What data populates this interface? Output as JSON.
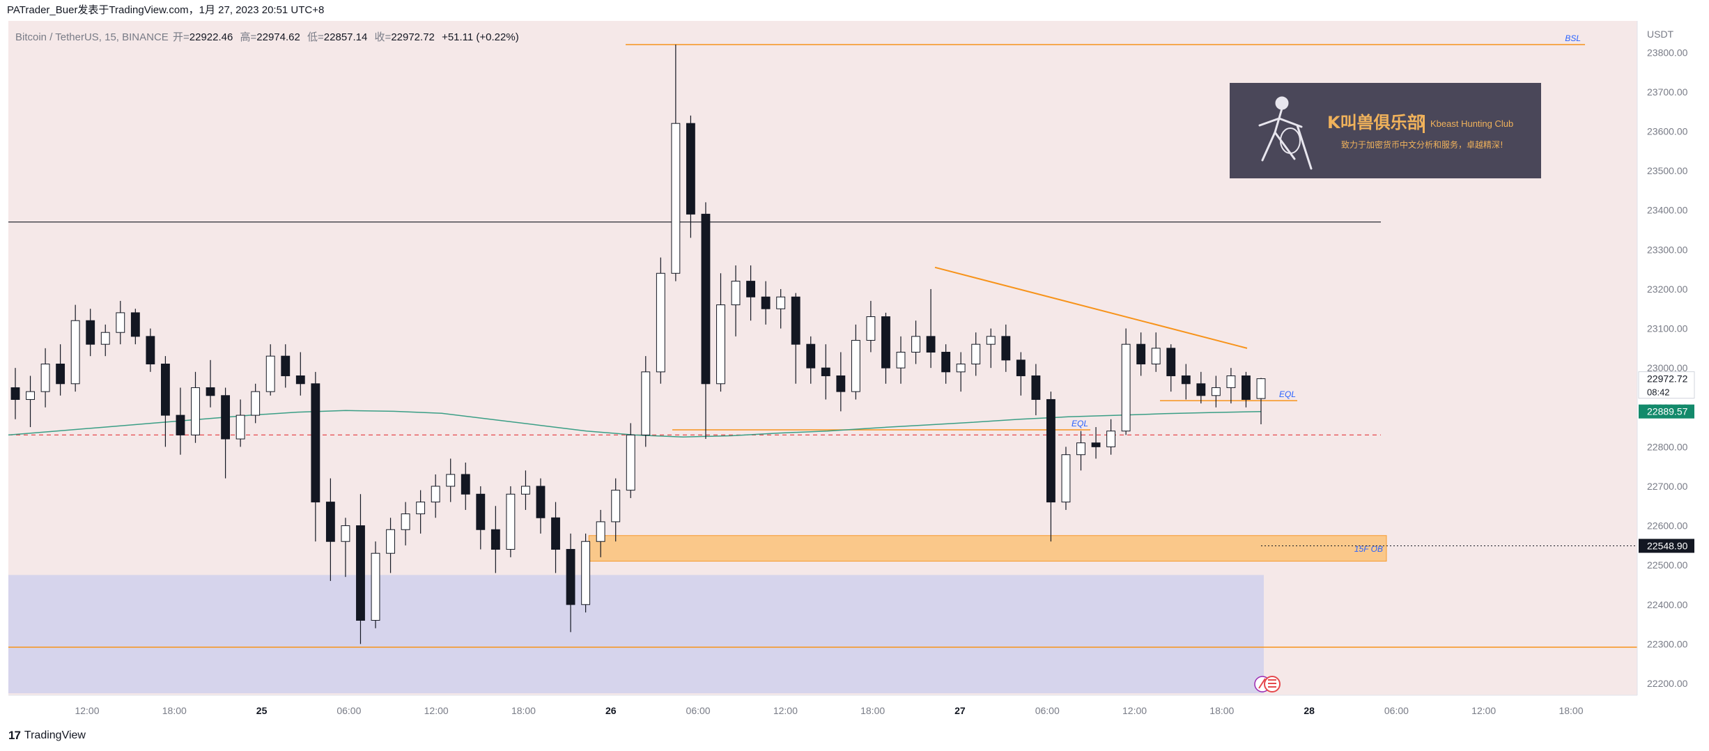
{
  "header": {
    "publisher_line": "PATrader_Buer发表于TradingView.com，1月 27, 2023 20:51 UTC+8"
  },
  "legend": {
    "symbol": "Bitcoin / TetherUS, 15, BINANCE",
    "open_label": "开=",
    "open": "22922.46",
    "high_label": "高=",
    "high": "22974.62",
    "low_label": "低=",
    "low": "22857.14",
    "close_label": "收=",
    "close": "22972.72",
    "change": "+51.11 (+0.22%)"
  },
  "footer": {
    "brand": "TradingView",
    "logo_mark": "17"
  },
  "colors": {
    "background_tint": "#f5e8e8",
    "bull_body": "#ffffff",
    "bear_body": "#131722",
    "orange": "#f7931a",
    "ma": "#3a9e85",
    "ma_label_bg": "#138a6b",
    "discount_zone": "#d6d4ec",
    "ob_fill": "#fbc580",
    "dashed_red": "#e5484d",
    "label_blue": "#2962ff"
  },
  "chart_data": {
    "type": "candlestick",
    "currency": "USDT",
    "ylim": [
      22170,
      23880
    ],
    "y_ticks": [
      22200,
      22300,
      22400,
      22500,
      22600,
      22700,
      22800,
      22900,
      23000,
      23100,
      23200,
      23300,
      23400,
      23500,
      23600,
      23700,
      23800
    ],
    "x_ticks": [
      "12:00",
      "18:00",
      "25",
      "06:00",
      "12:00",
      "18:00",
      "26",
      "06:00",
      "12:00",
      "18:00",
      "27",
      "06:00",
      "12:00",
      "18:00",
      "28",
      "06:00",
      "12:00",
      "18:00"
    ],
    "x_tick_bold": [
      "25",
      "26",
      "27",
      "28"
    ],
    "price_labels": [
      {
        "text": "22972.72",
        "sub": "08:42",
        "value": 22972.72,
        "style": "last"
      },
      {
        "text": "22889.57",
        "value": 22889.57,
        "style": "ma"
      },
      {
        "text": "22548.90",
        "value": 22548.9,
        "style": "crosshair"
      }
    ],
    "horizontal_levels": [
      {
        "name": "BSL",
        "value": 23820,
        "color": "orange",
        "label": "BSL"
      },
      {
        "name": "range-high",
        "value": 23370,
        "color": "black"
      },
      {
        "name": "EQL-left",
        "value": 22843,
        "color": "orange",
        "label": "EQL"
      },
      {
        "name": "EQL-right",
        "value": 22917,
        "color": "orange",
        "label": "EQL"
      },
      {
        "name": "dashed-red",
        "value": 22830,
        "color": "red-dashed"
      },
      {
        "name": "low-line",
        "value": 22292,
        "color": "orange"
      }
    ],
    "zones": [
      {
        "name": "15F OB",
        "from": 22510,
        "to": 22575,
        "label": "15F OB"
      },
      {
        "name": "discount-zone",
        "from": 22175,
        "to": 22475
      }
    ],
    "trendline": {
      "from": 23255,
      "to": 23050
    },
    "annotation_box": {
      "title": "K叫兽俱乐部",
      "subtitle": "Kbeast Hunting Club",
      "slogan": "致力于加密货币中文分析和服务，卓越精深!"
    },
    "series": [
      {
        "name": "",
        "values": [
          {
            "o": 22950,
            "h": 23000,
            "l": 22870,
            "c": 22920
          },
          {
            "o": 22920,
            "h": 22980,
            "l": 22850,
            "c": 22940
          },
          {
            "o": 22940,
            "h": 23050,
            "l": 22900,
            "c": 23010
          },
          {
            "o": 23010,
            "h": 23060,
            "l": 22930,
            "c": 22960
          },
          {
            "o": 22960,
            "h": 23160,
            "l": 22940,
            "c": 23120
          },
          {
            "o": 23120,
            "h": 23150,
            "l": 23030,
            "c": 23060
          },
          {
            "o": 23060,
            "h": 23110,
            "l": 23030,
            "c": 23090
          },
          {
            "o": 23090,
            "h": 23170,
            "l": 23060,
            "c": 23140
          },
          {
            "o": 23140,
            "h": 23150,
            "l": 23060,
            "c": 23080
          },
          {
            "o": 23080,
            "h": 23100,
            "l": 22990,
            "c": 23010
          },
          {
            "o": 23010,
            "h": 23030,
            "l": 22800,
            "c": 22880
          },
          {
            "o": 22880,
            "h": 22950,
            "l": 22780,
            "c": 22830
          },
          {
            "o": 22830,
            "h": 22990,
            "l": 22810,
            "c": 22950
          },
          {
            "o": 22950,
            "h": 23020,
            "l": 22900,
            "c": 22930
          },
          {
            "o": 22930,
            "h": 22950,
            "l": 22720,
            "c": 22820
          },
          {
            "o": 22820,
            "h": 22920,
            "l": 22800,
            "c": 22880
          },
          {
            "o": 22880,
            "h": 22960,
            "l": 22860,
            "c": 22940
          },
          {
            "o": 22940,
            "h": 23060,
            "l": 22930,
            "c": 23030
          },
          {
            "o": 23030,
            "h": 23060,
            "l": 22950,
            "c": 22980
          },
          {
            "o": 22980,
            "h": 23040,
            "l": 22930,
            "c": 22960
          },
          {
            "o": 22960,
            "h": 22990,
            "l": 22560,
            "c": 22660
          },
          {
            "o": 22660,
            "h": 22720,
            "l": 22460,
            "c": 22560
          },
          {
            "o": 22560,
            "h": 22620,
            "l": 22470,
            "c": 22600
          },
          {
            "o": 22600,
            "h": 22680,
            "l": 22300,
            "c": 22360
          },
          {
            "o": 22360,
            "h": 22560,
            "l": 22340,
            "c": 22530
          },
          {
            "o": 22530,
            "h": 22620,
            "l": 22480,
            "c": 22590
          },
          {
            "o": 22590,
            "h": 22660,
            "l": 22550,
            "c": 22630
          },
          {
            "o": 22630,
            "h": 22690,
            "l": 22580,
            "c": 22660
          },
          {
            "o": 22660,
            "h": 22730,
            "l": 22620,
            "c": 22700
          },
          {
            "o": 22700,
            "h": 22770,
            "l": 22660,
            "c": 22730
          },
          {
            "o": 22730,
            "h": 22760,
            "l": 22640,
            "c": 22680
          },
          {
            "o": 22680,
            "h": 22700,
            "l": 22540,
            "c": 22590
          },
          {
            "o": 22590,
            "h": 22650,
            "l": 22480,
            "c": 22540
          },
          {
            "o": 22540,
            "h": 22700,
            "l": 22520,
            "c": 22680
          },
          {
            "o": 22680,
            "h": 22740,
            "l": 22640,
            "c": 22700
          },
          {
            "o": 22700,
            "h": 22720,
            "l": 22580,
            "c": 22620
          },
          {
            "o": 22620,
            "h": 22660,
            "l": 22480,
            "c": 22540
          },
          {
            "o": 22540,
            "h": 22580,
            "l": 22330,
            "c": 22400
          },
          {
            "o": 22400,
            "h": 22580,
            "l": 22380,
            "c": 22560
          },
          {
            "o": 22560,
            "h": 22640,
            "l": 22520,
            "c": 22610
          },
          {
            "o": 22610,
            "h": 22720,
            "l": 22560,
            "c": 22690
          },
          {
            "o": 22690,
            "h": 22860,
            "l": 22670,
            "c": 22830
          },
          {
            "o": 22830,
            "h": 23030,
            "l": 22800,
            "c": 22990
          },
          {
            "o": 22990,
            "h": 23280,
            "l": 22960,
            "c": 23240
          },
          {
            "o": 23240,
            "h": 23820,
            "l": 23220,
            "c": 23620
          },
          {
            "o": 23620,
            "h": 23640,
            "l": 23330,
            "c": 23390
          },
          {
            "o": 23390,
            "h": 23420,
            "l": 22820,
            "c": 22960
          },
          {
            "o": 22960,
            "h": 23240,
            "l": 22940,
            "c": 23160
          },
          {
            "o": 23160,
            "h": 23260,
            "l": 23080,
            "c": 23220
          },
          {
            "o": 23220,
            "h": 23260,
            "l": 23120,
            "c": 23180
          },
          {
            "o": 23180,
            "h": 23220,
            "l": 23110,
            "c": 23150
          },
          {
            "o": 23150,
            "h": 23200,
            "l": 23100,
            "c": 23180
          },
          {
            "o": 23180,
            "h": 23190,
            "l": 22960,
            "c": 23060
          },
          {
            "o": 23060,
            "h": 23080,
            "l": 22960,
            "c": 23000
          },
          {
            "o": 23000,
            "h": 23060,
            "l": 22920,
            "c": 22980
          },
          {
            "o": 22980,
            "h": 23040,
            "l": 22890,
            "c": 22940
          },
          {
            "o": 22940,
            "h": 23110,
            "l": 22920,
            "c": 23070
          },
          {
            "o": 23070,
            "h": 23170,
            "l": 23040,
            "c": 23130
          },
          {
            "o": 23130,
            "h": 23140,
            "l": 22960,
            "c": 23000
          },
          {
            "o": 23000,
            "h": 23080,
            "l": 22960,
            "c": 23040
          },
          {
            "o": 23040,
            "h": 23120,
            "l": 23010,
            "c": 23080
          },
          {
            "o": 23080,
            "h": 23200,
            "l": 23000,
            "c": 23040
          },
          {
            "o": 23040,
            "h": 23060,
            "l": 22960,
            "c": 22990
          },
          {
            "o": 22990,
            "h": 23040,
            "l": 22940,
            "c": 23010
          },
          {
            "o": 23010,
            "h": 23090,
            "l": 22980,
            "c": 23060
          },
          {
            "o": 23060,
            "h": 23100,
            "l": 23000,
            "c": 23080
          },
          {
            "o": 23080,
            "h": 23110,
            "l": 22990,
            "c": 23020
          },
          {
            "o": 23020,
            "h": 23040,
            "l": 22930,
            "c": 22980
          },
          {
            "o": 22980,
            "h": 23010,
            "l": 22880,
            "c": 22920
          },
          {
            "o": 22920,
            "h": 22940,
            "l": 22560,
            "c": 22660
          },
          {
            "o": 22660,
            "h": 22800,
            "l": 22640,
            "c": 22780
          },
          {
            "o": 22780,
            "h": 22840,
            "l": 22740,
            "c": 22810
          },
          {
            "o": 22810,
            "h": 22850,
            "l": 22770,
            "c": 22800
          },
          {
            "o": 22800,
            "h": 22870,
            "l": 22780,
            "c": 22840
          },
          {
            "o": 22840,
            "h": 23100,
            "l": 22830,
            "c": 23060
          },
          {
            "o": 23060,
            "h": 23090,
            "l": 22980,
            "c": 23010
          },
          {
            "o": 23010,
            "h": 23090,
            "l": 22990,
            "c": 23050
          },
          {
            "o": 23050,
            "h": 23060,
            "l": 22940,
            "c": 22980
          },
          {
            "o": 22980,
            "h": 23010,
            "l": 22920,
            "c": 22960
          },
          {
            "o": 22960,
            "h": 22990,
            "l": 22910,
            "c": 22930
          },
          {
            "o": 22930,
            "h": 22980,
            "l": 22900,
            "c": 22950
          },
          {
            "o": 22950,
            "h": 23000,
            "l": 22910,
            "c": 22980
          },
          {
            "o": 22980,
            "h": 22990,
            "l": 22900,
            "c": 22920
          },
          {
            "o": 22922.46,
            "h": 22974.62,
            "l": 22857.14,
            "c": 22972.72
          }
        ]
      },
      {
        "name": "",
        "kind": "moving-average",
        "values": [
          22830,
          22840,
          22850,
          22860,
          22870,
          22880,
          22888,
          22892,
          22890,
          22885,
          22870,
          22855,
          22840,
          22830,
          22825,
          22828,
          22835,
          22840,
          22848,
          22855,
          22862,
          22870,
          22876,
          22880,
          22884,
          22887,
          22889.57
        ]
      }
    ]
  }
}
